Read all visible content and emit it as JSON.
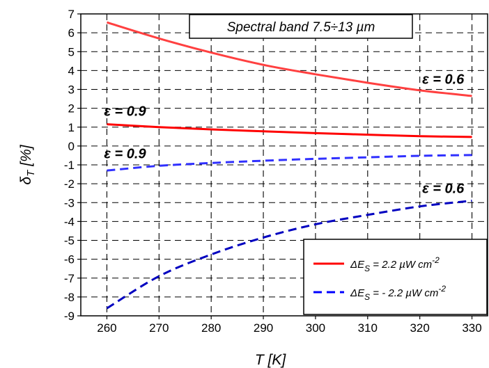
{
  "chart_data": {
    "type": "line",
    "title": "Spectral band 7.5÷13 µm",
    "xlabel": "T [K]",
    "ylabel_main": "δ",
    "ylabel_sub": "T",
    "ylabel_unit": "[%]",
    "xlim": [
      255,
      333
    ],
    "ylim": [
      -9,
      7
    ],
    "x_ticks": [
      260,
      270,
      280,
      290,
      300,
      310,
      320,
      330
    ],
    "y_ticks": [
      7,
      6,
      5,
      4,
      3,
      2,
      1,
      0,
      -1,
      -2,
      -3,
      -4,
      -5,
      -6,
      -7,
      -8,
      -9
    ],
    "grid": true,
    "series": [
      {
        "name": "ΔE_S = 2.2 µW cm^-2 (ε = 0.6)",
        "color": "#ff4040",
        "style": "solid",
        "x": [
          260,
          270,
          280,
          290,
          300,
          310,
          320,
          330
        ],
        "y": [
          6.55,
          5.7,
          4.95,
          4.3,
          3.8,
          3.35,
          2.95,
          2.65
        ]
      },
      {
        "name": "ΔE_S = 2.2 µW cm^-2 (ε = 0.9)",
        "color": "#ff0000",
        "style": "solid",
        "x": [
          260,
          270,
          280,
          290,
          300,
          310,
          320,
          330
        ],
        "y": [
          1.15,
          1.0,
          0.88,
          0.78,
          0.68,
          0.6,
          0.52,
          0.48
        ]
      },
      {
        "name": "ΔE_S = -2.2 µW cm^-2 (ε = 0.9)",
        "color": "#3030ff",
        "style": "dashed",
        "x": [
          260,
          270,
          280,
          290,
          300,
          310,
          320,
          330
        ],
        "y": [
          -1.3,
          -1.05,
          -0.9,
          -0.78,
          -0.68,
          -0.6,
          -0.52,
          -0.48
        ]
      },
      {
        "name": "ΔE_S = -2.2 µW cm^-2 (ε = 0.6)",
        "color": "#0000c0",
        "style": "dashed",
        "x": [
          260,
          270,
          280,
          290,
          300,
          310,
          320,
          330
        ],
        "y": [
          -8.6,
          -6.9,
          -5.75,
          -4.85,
          -4.15,
          -3.65,
          -3.2,
          -2.9
        ]
      }
    ],
    "annotations": [
      {
        "text": "ε = 0.6",
        "x": 321,
        "y": 3.3
      },
      {
        "text": "ε = 0.9",
        "x": 260,
        "y": 1.6
      },
      {
        "text": "ε = 0.9",
        "x": 260,
        "y": -0.65
      },
      {
        "text": "ε = 0.6",
        "x": 321,
        "y": -2.5
      }
    ],
    "legend": {
      "position": "bottom-right",
      "entries": [
        {
          "prefix": "ΔE",
          "sub": "S",
          "mid": " =   2.2 µW cm",
          "sup": "-2",
          "color": "#ff0000",
          "style": "solid"
        },
        {
          "prefix": "ΔE",
          "sub": "S",
          "mid": " = - 2.2 µW cm",
          "sup": "-2",
          "color": "#0000ff",
          "style": "dashed"
        }
      ]
    }
  }
}
